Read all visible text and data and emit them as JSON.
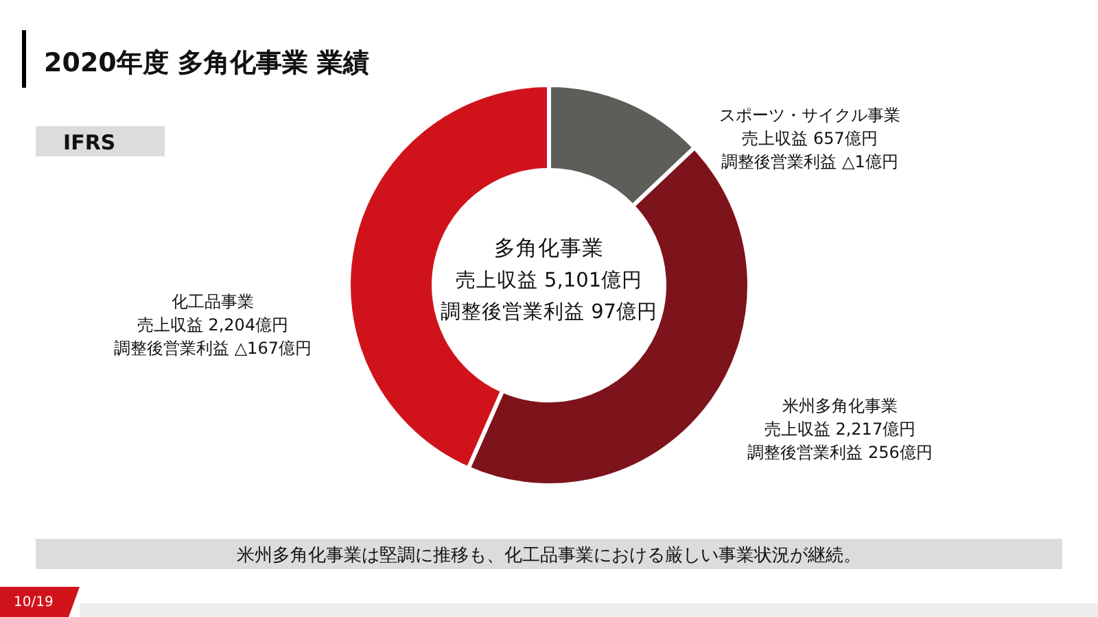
{
  "chart_data": {
    "type": "donut",
    "title": "2020年度 多角化事業 業績",
    "categories": [
      "スポーツ・サイクル事業",
      "米州多角化事業",
      "化工品事業"
    ],
    "values": [
      657,
      2217,
      2204
    ],
    "colors": [
      "#5f5d5a",
      "#7d141b",
      "#d0131b"
    ],
    "value_labels": [
      "売上収益 657億円",
      "売上収益 2,217億円",
      "売上収益 2,204億円"
    ],
    "annotations": [
      "IFRS",
      "多角化事業",
      "売上収益 5,101億円",
      "調整後営業利益 97億円",
      "調整後営業利益 △1億円",
      "調整後営業利益 256億円",
      "調整後営業利益 △167億円",
      "米州多角化事業は堅調に推移も、化工品事業における厳しい事業状況が継続。",
      "10/19"
    ]
  }
}
